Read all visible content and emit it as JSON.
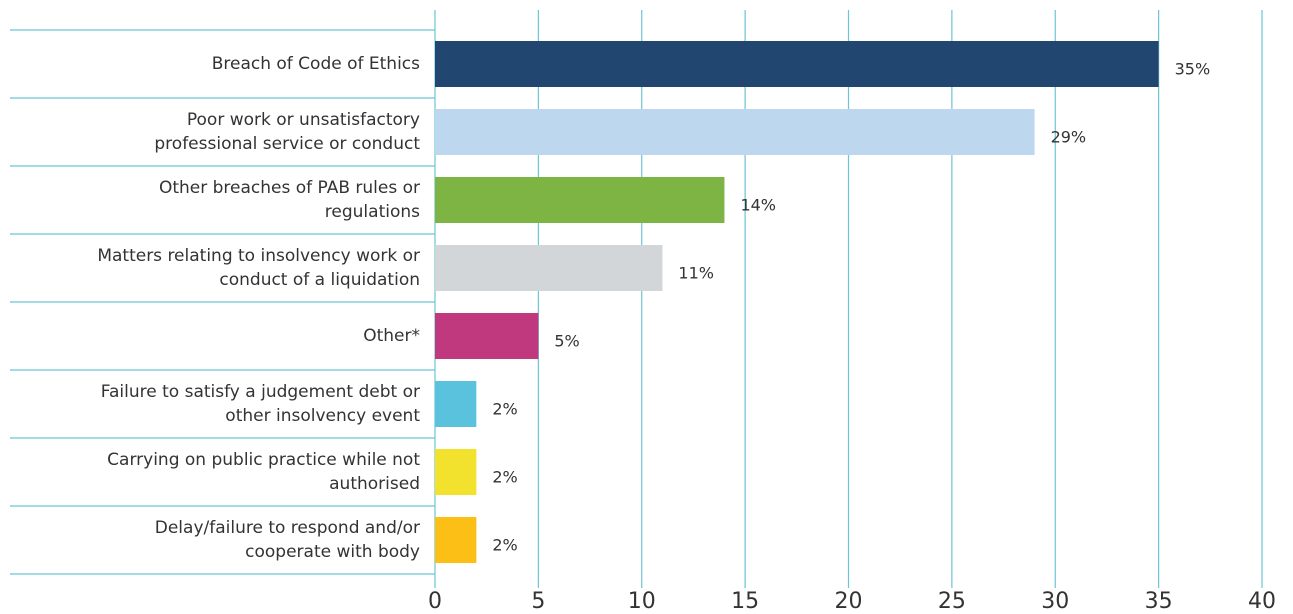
{
  "chart_data": {
    "type": "bar",
    "orientation": "horizontal",
    "categories": [
      [
        "Breach of Code of Ethics"
      ],
      [
        "Poor work or unsatisfactory",
        "professional service or conduct"
      ],
      [
        "Other breaches of PAB rules or",
        "regulations"
      ],
      [
        "Matters relating to insolvency work or",
        "conduct of a liquidation"
      ],
      [
        "Other*"
      ],
      [
        "Failure to satisfy a judgement debt or",
        "other insolvency event"
      ],
      [
        "Carrying on public practice while not",
        "authorised"
      ],
      [
        "Delay/failure to respond and/or",
        "cooperate with body"
      ]
    ],
    "values": [
      35,
      29,
      14,
      11,
      5,
      2,
      2,
      2
    ],
    "value_labels": [
      "35%",
      "29%",
      "14%",
      "11%",
      "5%",
      "2%",
      "2%",
      "2%"
    ],
    "colors": [
      "#214770",
      "#bdd7ee",
      "#7db443",
      "#d3d6d9",
      "#c0397f",
      "#5bc2dd",
      "#f2e22e",
      "#fbbf16"
    ],
    "xlim": [
      0,
      40
    ],
    "xticks": [
      0,
      5,
      10,
      15,
      20,
      25,
      30,
      35,
      40
    ],
    "grid": true
  }
}
